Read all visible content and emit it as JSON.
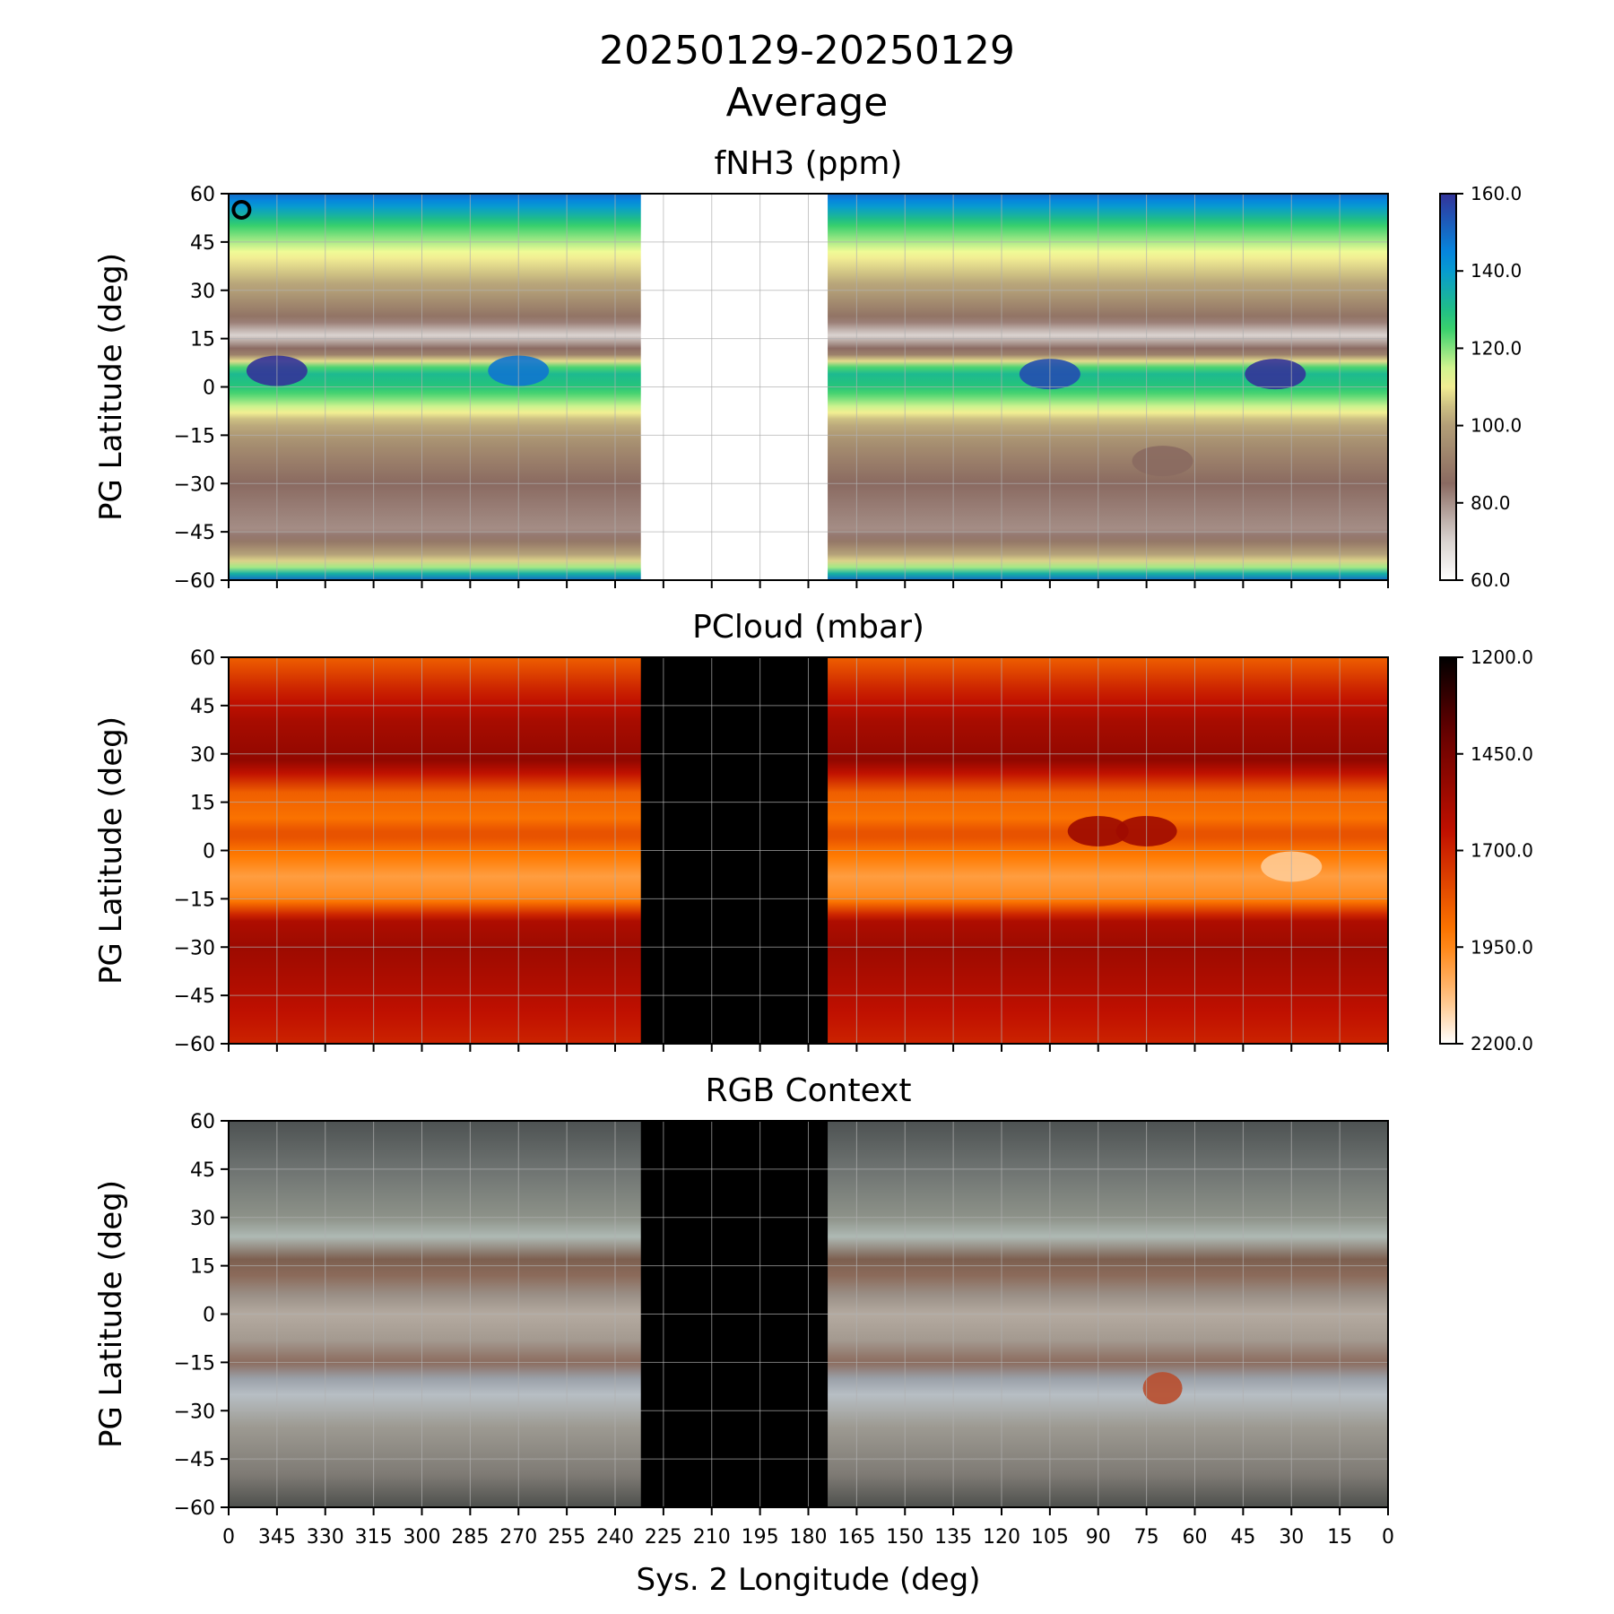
{
  "figure": {
    "title_line1": "20250129-20250129",
    "title_line2": "Average"
  },
  "chart_data": [
    {
      "type": "heatmap",
      "title": "fNH3 (ppm)",
      "xlabel": "",
      "ylabel": "PG Latitude (deg)",
      "xlim": [
        360,
        0
      ],
      "ylim": [
        -60,
        60
      ],
      "y_ticks": [
        "60",
        "45",
        "30",
        "15",
        "0",
        "−15",
        "−30",
        "−45",
        "−60"
      ],
      "grid": true,
      "no_data_longitude_range": [
        232,
        174
      ],
      "colormap": "terrain_r",
      "colorbar": {
        "min": 60.0,
        "max": 160.0,
        "ticks": [
          "160.0",
          "140.0",
          "120.0",
          "100.0",
          "80.0",
          "60.0"
        ]
      },
      "marker": {
        "symbol": "circle",
        "longitude": 356,
        "latitude": 55,
        "color": "#000000"
      },
      "zonal_profile": [
        {
          "lat": 60,
          "value": 150
        },
        {
          "lat": 50,
          "value": 125
        },
        {
          "lat": 40,
          "value": 110
        },
        {
          "lat": 30,
          "value": 100
        },
        {
          "lat": 22,
          "value": 88
        },
        {
          "lat": 16,
          "value": 70
        },
        {
          "lat": 10,
          "value": 92
        },
        {
          "lat": 5,
          "value": 132
        },
        {
          "lat": 0,
          "value": 128
        },
        {
          "lat": -5,
          "value": 118
        },
        {
          "lat": -10,
          "value": 105
        },
        {
          "lat": -18,
          "value": 95
        },
        {
          "lat": -30,
          "value": 85
        },
        {
          "lat": -45,
          "value": 80
        },
        {
          "lat": -55,
          "value": 110
        },
        {
          "lat": -60,
          "value": 150
        }
      ],
      "features": [
        {
          "longitude": 345,
          "latitude": 5,
          "value": 160
        },
        {
          "longitude": 270,
          "latitude": 5,
          "value": 148
        },
        {
          "longitude": 105,
          "latitude": 4,
          "value": 155
        },
        {
          "longitude": 35,
          "latitude": 4,
          "value": 160
        },
        {
          "longitude": 70,
          "latitude": -23,
          "value": 85
        }
      ]
    },
    {
      "type": "heatmap",
      "title": "PCloud (mbar)",
      "xlabel": "",
      "ylabel": "PG Latitude (deg)",
      "xlim": [
        360,
        0
      ],
      "ylim": [
        -60,
        60
      ],
      "y_ticks": [
        "60",
        "45",
        "30",
        "15",
        "0",
        "−15",
        "−30",
        "−45",
        "−60"
      ],
      "grid": true,
      "no_data_longitude_range": [
        232,
        174
      ],
      "colormap": "gist_heat",
      "colorbar": {
        "min": 2200.0,
        "max": 1200.0,
        "ticks": [
          "1200.0",
          "1450.0",
          "1700.0",
          "1950.0",
          "2200.0"
        ]
      },
      "zonal_profile": [
        {
          "lat": 60,
          "value": 1850
        },
        {
          "lat": 50,
          "value": 1700
        },
        {
          "lat": 40,
          "value": 1580
        },
        {
          "lat": 28,
          "value": 1520
        },
        {
          "lat": 18,
          "value": 1850
        },
        {
          "lat": 10,
          "value": 1900
        },
        {
          "lat": 5,
          "value": 1800
        },
        {
          "lat": 0,
          "value": 1900
        },
        {
          "lat": -8,
          "value": 2000
        },
        {
          "lat": -15,
          "value": 1950
        },
        {
          "lat": -22,
          "value": 1600
        },
        {
          "lat": -30,
          "value": 1550
        },
        {
          "lat": -45,
          "value": 1620
        },
        {
          "lat": -60,
          "value": 1700
        }
      ],
      "features": [
        {
          "longitude": 90,
          "latitude": 6,
          "value": 1550
        },
        {
          "longitude": 75,
          "latitude": 6,
          "value": 1560
        },
        {
          "longitude": 30,
          "latitude": -5,
          "value": 2100
        }
      ]
    },
    {
      "type": "heatmap",
      "title": "RGB Context",
      "xlabel": "Sys. 2 Longitude (deg)",
      "ylabel": "PG Latitude (deg)",
      "xlim": [
        360,
        0
      ],
      "ylim": [
        -60,
        60
      ],
      "x_ticks": [
        "0",
        "345",
        "330",
        "315",
        "300",
        "285",
        "270",
        "255",
        "240",
        "225",
        "210",
        "195",
        "180",
        "165",
        "150",
        "135",
        "120",
        "105",
        "90",
        "75",
        "60",
        "45",
        "30",
        "15",
        "0"
      ],
      "y_ticks": [
        "60",
        "45",
        "30",
        "15",
        "0",
        "−15",
        "−30",
        "−45",
        "−60"
      ],
      "grid": true,
      "no_data_longitude_range": [
        232,
        174
      ],
      "zonal_colors": [
        {
          "lat": 60,
          "color": "#4d5252"
        },
        {
          "lat": 45,
          "color": "#6e7371"
        },
        {
          "lat": 30,
          "color": "#8d9289"
        },
        {
          "lat": 24,
          "color": "#aeb9b4"
        },
        {
          "lat": 17,
          "color": "#7d6050"
        },
        {
          "lat": 12,
          "color": "#8b6a5a"
        },
        {
          "lat": 6,
          "color": "#9a8f86"
        },
        {
          "lat": 0,
          "color": "#b4aaa0"
        },
        {
          "lat": -8,
          "color": "#a49a90"
        },
        {
          "lat": -15,
          "color": "#8c6c5e"
        },
        {
          "lat": -20,
          "color": "#9aa0a8"
        },
        {
          "lat": -25,
          "color": "#b7bec4"
        },
        {
          "lat": -35,
          "color": "#9d9a92"
        },
        {
          "lat": -50,
          "color": "#7e7a74"
        },
        {
          "lat": -60,
          "color": "#4e504d"
        }
      ],
      "features": [
        {
          "name": "red spot",
          "longitude": 70,
          "latitude": -23,
          "color": "#b84e2e"
        }
      ]
    }
  ]
}
